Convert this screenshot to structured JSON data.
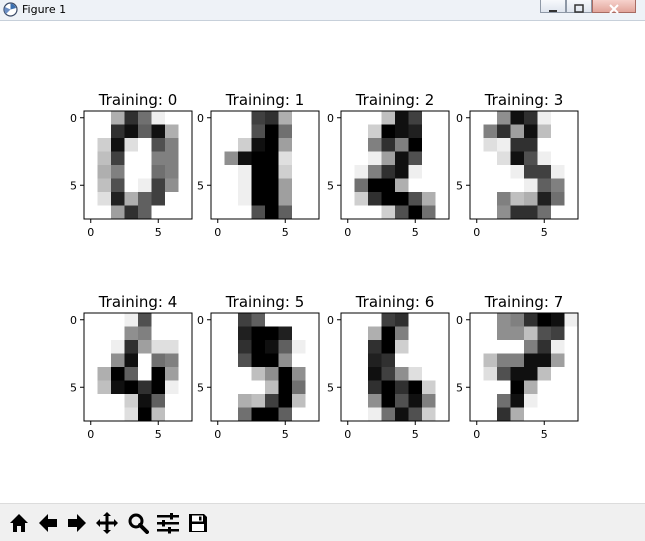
{
  "window": {
    "title": "Figure 1"
  },
  "figure": {
    "panels": [
      {
        "title": "Training: 0",
        "yticks": [
          "0",
          "5"
        ],
        "xticks": [
          "0",
          "5"
        ]
      },
      {
        "title": "Training: 1",
        "yticks": [
          "0",
          "5"
        ],
        "xticks": [
          "0",
          "5"
        ]
      },
      {
        "title": "Training: 2",
        "yticks": [
          "0",
          "5"
        ],
        "xticks": [
          "0",
          "5"
        ]
      },
      {
        "title": "Training: 3",
        "yticks": [
          "0",
          "5"
        ],
        "xticks": [
          "0",
          "5"
        ]
      },
      {
        "title": "Training: 4",
        "yticks": [
          "0",
          "5"
        ],
        "xticks": [
          "0",
          "5"
        ]
      },
      {
        "title": "Training: 5",
        "yticks": [
          "0",
          "5"
        ],
        "xticks": [
          "0",
          "5"
        ]
      },
      {
        "title": "Training: 6",
        "yticks": [
          "0",
          "5"
        ],
        "xticks": [
          "0",
          "5"
        ]
      },
      {
        "title": "Training: 7",
        "yticks": [
          "0",
          "5"
        ],
        "xticks": [
          "0",
          "5"
        ]
      }
    ]
  },
  "chart_data": {
    "type": "heatmap",
    "colormap": "gray_r",
    "value_range": [
      0,
      16
    ],
    "images": [
      {
        "label": "Training: 0",
        "pixels": [
          [
            0,
            0,
            5,
            13,
            9,
            1,
            0,
            0
          ],
          [
            0,
            0,
            13,
            15,
            10,
            15,
            5,
            0
          ],
          [
            0,
            3,
            15,
            2,
            0,
            11,
            8,
            0
          ],
          [
            0,
            4,
            12,
            0,
            0,
            8,
            8,
            0
          ],
          [
            0,
            5,
            8,
            0,
            0,
            9,
            8,
            0
          ],
          [
            0,
            4,
            11,
            0,
            1,
            12,
            7,
            0
          ],
          [
            0,
            2,
            14,
            5,
            10,
            12,
            0,
            0
          ],
          [
            0,
            0,
            6,
            13,
            10,
            0,
            0,
            0
          ]
        ]
      },
      {
        "label": "Training: 1",
        "pixels": [
          [
            0,
            0,
            0,
            12,
            13,
            5,
            0,
            0
          ],
          [
            0,
            0,
            0,
            11,
            16,
            9,
            0,
            0
          ],
          [
            0,
            0,
            3,
            15,
            16,
            6,
            0,
            0
          ],
          [
            0,
            7,
            15,
            16,
            16,
            2,
            0,
            0
          ],
          [
            0,
            0,
            1,
            16,
            16,
            3,
            0,
            0
          ],
          [
            0,
            0,
            1,
            16,
            16,
            6,
            0,
            0
          ],
          [
            0,
            0,
            1,
            16,
            16,
            6,
            0,
            0
          ],
          [
            0,
            0,
            0,
            11,
            16,
            10,
            0,
            0
          ]
        ]
      },
      {
        "label": "Training: 2",
        "pixels": [
          [
            0,
            0,
            0,
            4,
            15,
            12,
            0,
            0
          ],
          [
            0,
            0,
            3,
            16,
            15,
            14,
            0,
            0
          ],
          [
            0,
            0,
            8,
            13,
            8,
            16,
            0,
            0
          ],
          [
            0,
            0,
            1,
            6,
            15,
            11,
            0,
            0
          ],
          [
            0,
            1,
            8,
            13,
            15,
            1,
            0,
            0
          ],
          [
            0,
            9,
            16,
            16,
            5,
            0,
            0,
            0
          ],
          [
            0,
            3,
            13,
            16,
            16,
            11,
            5,
            0
          ],
          [
            0,
            0,
            0,
            3,
            11,
            16,
            9,
            0
          ]
        ]
      },
      {
        "label": "Training: 3",
        "pixels": [
          [
            0,
            0,
            7,
            15,
            13,
            1,
            0,
            0
          ],
          [
            0,
            8,
            13,
            6,
            15,
            4,
            0,
            0
          ],
          [
            0,
            2,
            1,
            13,
            13,
            0,
            0,
            0
          ],
          [
            0,
            0,
            2,
            15,
            11,
            1,
            0,
            0
          ],
          [
            0,
            0,
            0,
            1,
            12,
            12,
            1,
            0
          ],
          [
            0,
            0,
            0,
            0,
            1,
            10,
            8,
            0
          ],
          [
            0,
            0,
            8,
            4,
            5,
            14,
            9,
            0
          ],
          [
            0,
            0,
            7,
            13,
            13,
            9,
            0,
            0
          ]
        ]
      },
      {
        "label": "Training: 4",
        "pixels": [
          [
            0,
            0,
            0,
            1,
            11,
            0,
            0,
            0
          ],
          [
            0,
            0,
            0,
            7,
            8,
            0,
            0,
            0
          ],
          [
            0,
            0,
            1,
            13,
            6,
            2,
            2,
            0
          ],
          [
            0,
            0,
            7,
            15,
            0,
            9,
            8,
            0
          ],
          [
            0,
            5,
            16,
            10,
            0,
            16,
            6,
            0
          ],
          [
            0,
            4,
            15,
            16,
            13,
            16,
            1,
            0
          ],
          [
            0,
            0,
            0,
            3,
            15,
            10,
            0,
            0
          ],
          [
            0,
            0,
            0,
            2,
            16,
            4,
            0,
            0
          ]
        ]
      },
      {
        "label": "Training: 5",
        "pixels": [
          [
            0,
            0,
            12,
            10,
            0,
            0,
            0,
            0
          ],
          [
            0,
            0,
            14,
            16,
            16,
            14,
            0,
            0
          ],
          [
            0,
            0,
            13,
            16,
            15,
            10,
            1,
            0
          ],
          [
            0,
            0,
            11,
            16,
            16,
            7,
            0,
            0
          ],
          [
            0,
            0,
            0,
            4,
            7,
            16,
            7,
            0
          ],
          [
            0,
            0,
            0,
            0,
            4,
            16,
            9,
            0
          ],
          [
            0,
            0,
            5,
            4,
            12,
            16,
            4,
            0
          ],
          [
            0,
            0,
            9,
            16,
            16,
            10,
            0,
            0
          ]
        ]
      },
      {
        "label": "Training: 6",
        "pixels": [
          [
            0,
            0,
            0,
            12,
            13,
            0,
            0,
            0
          ],
          [
            0,
            0,
            5,
            16,
            8,
            0,
            0,
            0
          ],
          [
            0,
            0,
            13,
            16,
            3,
            0,
            0,
            0
          ],
          [
            0,
            0,
            14,
            13,
            0,
            0,
            0,
            0
          ],
          [
            0,
            0,
            15,
            12,
            7,
            2,
            0,
            0
          ],
          [
            0,
            0,
            13,
            16,
            13,
            16,
            3,
            0
          ],
          [
            0,
            0,
            7,
            16,
            11,
            15,
            8,
            0
          ],
          [
            0,
            0,
            1,
            9,
            15,
            11,
            3,
            0
          ]
        ]
      },
      {
        "label": "Training: 7",
        "pixels": [
          [
            0,
            0,
            7,
            8,
            13,
            16,
            15,
            1
          ],
          [
            0,
            0,
            7,
            7,
            4,
            11,
            12,
            0
          ],
          [
            0,
            0,
            0,
            0,
            8,
            13,
            1,
            0
          ],
          [
            0,
            4,
            8,
            8,
            15,
            15,
            6,
            0
          ],
          [
            0,
            2,
            11,
            15,
            15,
            4,
            0,
            0
          ],
          [
            0,
            0,
            0,
            16,
            5,
            0,
            0,
            0
          ],
          [
            0,
            0,
            9,
            15,
            1,
            0,
            0,
            0
          ],
          [
            0,
            0,
            13,
            5,
            0,
            0,
            0,
            0
          ]
        ]
      }
    ],
    "ticks": {
      "x": [
        0,
        5
      ],
      "y": [
        0,
        5
      ]
    },
    "grid": false
  },
  "toolbar": {
    "buttons": [
      {
        "name": "home-button",
        "icon": "home-icon"
      },
      {
        "name": "back-button",
        "icon": "arrow-left-icon"
      },
      {
        "name": "forward-button",
        "icon": "arrow-right-icon"
      },
      {
        "name": "pan-button",
        "icon": "move-icon"
      },
      {
        "name": "zoom-button",
        "icon": "magnifier-icon"
      },
      {
        "name": "configure-button",
        "icon": "sliders-icon"
      },
      {
        "name": "save-button",
        "icon": "floppy-disk-icon"
      }
    ]
  }
}
